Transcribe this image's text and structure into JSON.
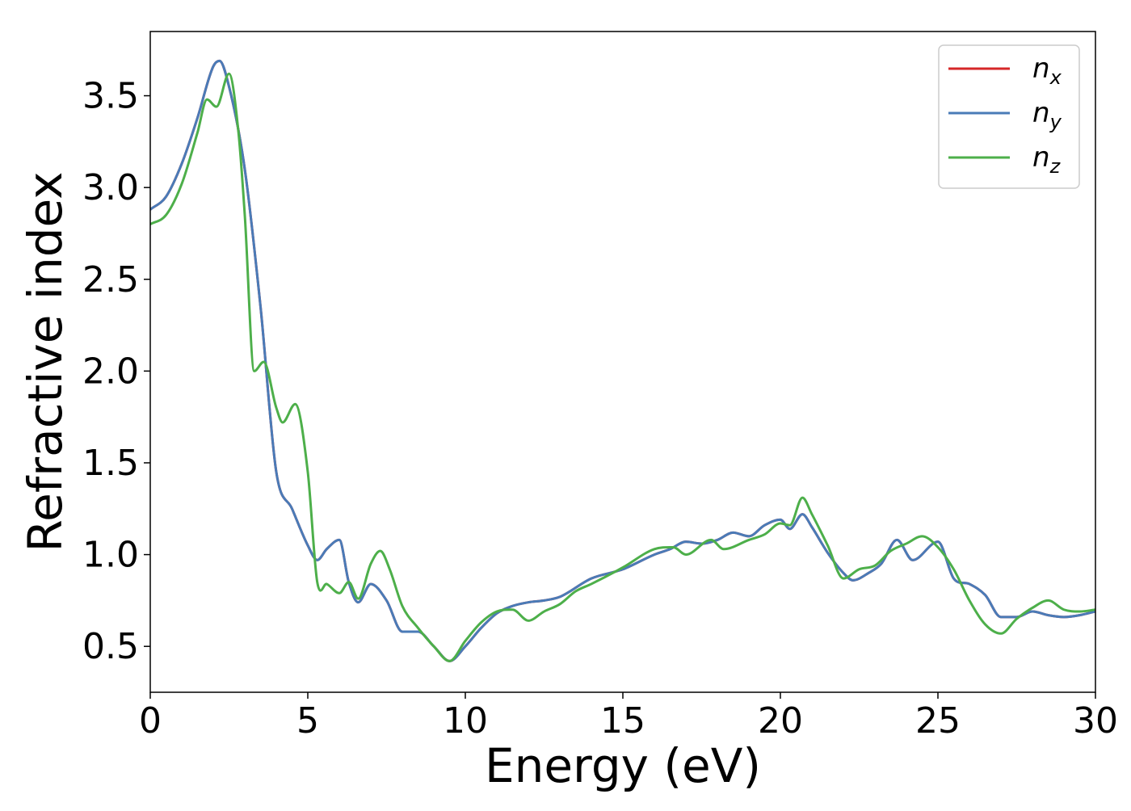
{
  "chart_data": {
    "type": "line",
    "title": "",
    "xlabel": "Energy (eV)",
    "ylabel": "Refractive index",
    "xlim": [
      0,
      30
    ],
    "ylim": [
      0.25,
      3.85
    ],
    "xticks": [
      0,
      5,
      10,
      15,
      20,
      25,
      30
    ],
    "xtick_labels": [
      "0",
      "5",
      "10",
      "15",
      "20",
      "25",
      "30"
    ],
    "yticks": [
      0.5,
      1.0,
      1.5,
      2.0,
      2.5,
      3.0,
      3.5
    ],
    "ytick_labels": [
      "0.5",
      "1.0",
      "1.5",
      "2.0",
      "2.5",
      "3.0",
      "3.5"
    ],
    "grid": false,
    "legend_position": "top-right",
    "series": [
      {
        "name": "n_x",
        "legend_base": "n",
        "legend_sub": "x",
        "color": "#d62728",
        "x": [
          0,
          0.5,
          1.0,
          1.5,
          2.0,
          2.2,
          2.5,
          3.0,
          3.5,
          4.0,
          4.5,
          5.0,
          5.3,
          5.6,
          6.0,
          6.3,
          6.6,
          7.0,
          7.5,
          8.0,
          8.5,
          9.0,
          9.5,
          10.0,
          10.5,
          11.0,
          11.5,
          12.0,
          12.5,
          13.0,
          14.0,
          15.0,
          16.0,
          16.5,
          17.0,
          17.5,
          18.0,
          18.5,
          19.0,
          19.5,
          20.0,
          20.3,
          20.7,
          21.0,
          21.5,
          22.0,
          22.3,
          22.8,
          23.2,
          23.7,
          24.2,
          25.0,
          25.5,
          26.0,
          26.5,
          27.0,
          27.5,
          28.0,
          28.5,
          29.0,
          29.5,
          30.0
        ],
        "y": [
          2.88,
          2.95,
          3.13,
          3.38,
          3.66,
          3.69,
          3.55,
          3.1,
          2.35,
          1.45,
          1.25,
          1.05,
          0.97,
          1.03,
          1.08,
          0.85,
          0.74,
          0.84,
          0.75,
          0.58,
          0.58,
          0.5,
          0.42,
          0.5,
          0.6,
          0.68,
          0.72,
          0.74,
          0.75,
          0.77,
          0.87,
          0.92,
          1.0,
          1.03,
          1.07,
          1.06,
          1.08,
          1.12,
          1.1,
          1.16,
          1.19,
          1.14,
          1.22,
          1.15,
          1.01,
          0.9,
          0.86,
          0.9,
          0.95,
          1.08,
          0.97,
          1.07,
          0.87,
          0.84,
          0.78,
          0.66,
          0.66,
          0.69,
          0.67,
          0.66,
          0.67,
          0.69
        ]
      },
      {
        "name": "n_y",
        "legend_base": "n",
        "legend_sub": "y",
        "color": "#4a7bb7",
        "x": [
          0,
          0.5,
          1.0,
          1.5,
          2.0,
          2.2,
          2.5,
          3.0,
          3.5,
          4.0,
          4.5,
          5.0,
          5.3,
          5.6,
          6.0,
          6.3,
          6.6,
          7.0,
          7.5,
          8.0,
          8.5,
          9.0,
          9.5,
          10.0,
          10.5,
          11.0,
          11.5,
          12.0,
          12.5,
          13.0,
          14.0,
          15.0,
          16.0,
          16.5,
          17.0,
          17.5,
          18.0,
          18.5,
          19.0,
          19.5,
          20.0,
          20.3,
          20.7,
          21.0,
          21.5,
          22.0,
          22.3,
          22.8,
          23.2,
          23.7,
          24.2,
          25.0,
          25.5,
          26.0,
          26.5,
          27.0,
          27.5,
          28.0,
          28.5,
          29.0,
          29.5,
          30.0
        ],
        "y": [
          2.88,
          2.95,
          3.13,
          3.38,
          3.66,
          3.69,
          3.55,
          3.1,
          2.35,
          1.45,
          1.25,
          1.05,
          0.97,
          1.03,
          1.08,
          0.85,
          0.74,
          0.84,
          0.75,
          0.58,
          0.58,
          0.5,
          0.42,
          0.5,
          0.6,
          0.68,
          0.72,
          0.74,
          0.75,
          0.77,
          0.87,
          0.92,
          1.0,
          1.03,
          1.07,
          1.06,
          1.08,
          1.12,
          1.1,
          1.16,
          1.19,
          1.14,
          1.22,
          1.15,
          1.01,
          0.9,
          0.86,
          0.9,
          0.95,
          1.08,
          0.97,
          1.07,
          0.87,
          0.84,
          0.78,
          0.66,
          0.66,
          0.69,
          0.67,
          0.66,
          0.67,
          0.69
        ]
      },
      {
        "name": "n_z",
        "legend_base": "n",
        "legend_sub": "z",
        "color": "#4daf4a",
        "x": [
          0,
          0.5,
          1.0,
          1.5,
          1.8,
          2.1,
          2.5,
          2.8,
          3.0,
          3.3,
          3.6,
          4.0,
          4.2,
          4.6,
          5.0,
          5.3,
          5.6,
          6.0,
          6.3,
          6.6,
          7.0,
          7.3,
          7.6,
          8.0,
          8.5,
          9.0,
          9.5,
          10.0,
          10.5,
          11.0,
          11.5,
          12.0,
          12.5,
          13.0,
          13.5,
          14.0,
          15.0,
          16.0,
          16.6,
          17.0,
          17.8,
          18.2,
          19.0,
          19.5,
          20.0,
          20.3,
          20.7,
          21.0,
          21.5,
          22.0,
          22.5,
          23.0,
          23.5,
          24.0,
          24.5,
          25.0,
          25.5,
          26.0,
          26.5,
          27.0,
          27.5,
          28.0,
          28.5,
          29.0,
          29.5,
          30.0
        ],
        "y": [
          2.8,
          2.85,
          3.02,
          3.3,
          3.48,
          3.44,
          3.62,
          3.3,
          2.85,
          2.0,
          2.05,
          1.8,
          1.72,
          1.82,
          1.45,
          0.85,
          0.84,
          0.79,
          0.85,
          0.76,
          0.95,
          1.02,
          0.92,
          0.72,
          0.6,
          0.5,
          0.42,
          0.53,
          0.63,
          0.69,
          0.7,
          0.64,
          0.69,
          0.73,
          0.8,
          0.84,
          0.93,
          1.03,
          1.04,
          1.0,
          1.08,
          1.03,
          1.08,
          1.11,
          1.17,
          1.16,
          1.31,
          1.22,
          1.05,
          0.87,
          0.92,
          0.94,
          1.02,
          1.06,
          1.1,
          1.04,
          0.92,
          0.75,
          0.62,
          0.57,
          0.65,
          0.71,
          0.75,
          0.7,
          0.69,
          0.7
        ]
      }
    ]
  }
}
